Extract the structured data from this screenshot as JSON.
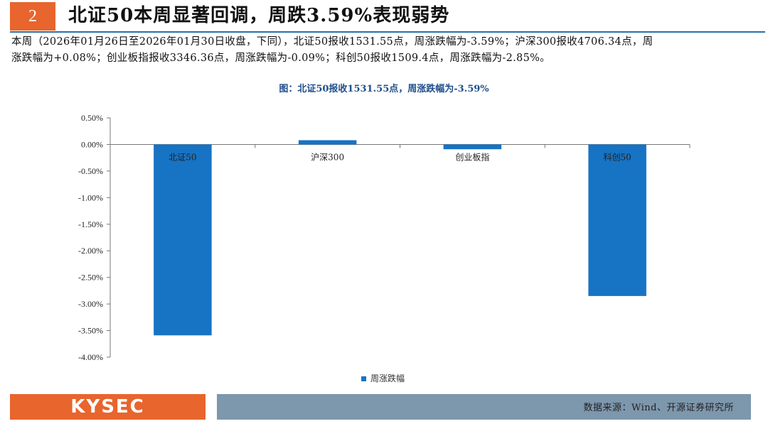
{
  "header": {
    "section_number": "2",
    "title": "北证50本周显著回调，周跌3.59%表现弱势"
  },
  "description": {
    "line1": "本周（2026年01月26日至2026年01月30日收盘，下同），北证50报收1531.55点，周涨跌幅为-3.59%；沪深300报收4706.34点，周",
    "line2": "涨跌幅为+0.08%；创业板指报收3346.36点，周涨跌幅为-0.09%；科创50报收1509.4点，周涨跌幅为-2.85%。"
  },
  "chart_data": {
    "type": "bar",
    "title": "图：北证50报收1531.55点，周涨跌幅为-3.59%",
    "categories": [
      "北证50",
      "沪深300",
      "创业板指",
      "科创50"
    ],
    "series": [
      {
        "name": "周涨跌幅",
        "values": [
          -3.59,
          0.08,
          -0.09,
          -2.85
        ],
        "color": "#1773c4"
      }
    ],
    "ylim": [
      -4.0,
      0.5
    ],
    "yticks": [
      0.5,
      0.0,
      -0.5,
      -1.0,
      -1.5,
      -2.0,
      -2.5,
      -3.0,
      -3.5,
      -4.0
    ],
    "ytick_labels": [
      "0.50%",
      "0.00%",
      "-0.50%",
      "-1.00%",
      "-1.50%",
      "-2.00%",
      "-2.50%",
      "-3.00%",
      "-3.50%",
      "-4.00%"
    ],
    "legend_position": "bottom-center",
    "grid": false
  },
  "footer": {
    "logo": "KYSEC",
    "source": "数据来源：Wind、开源证券研究所"
  },
  "colors": {
    "accent": "#e8652d",
    "rule": "#2a6fa8",
    "bar": "#1773c4",
    "footer_band": "#7d97ad"
  }
}
